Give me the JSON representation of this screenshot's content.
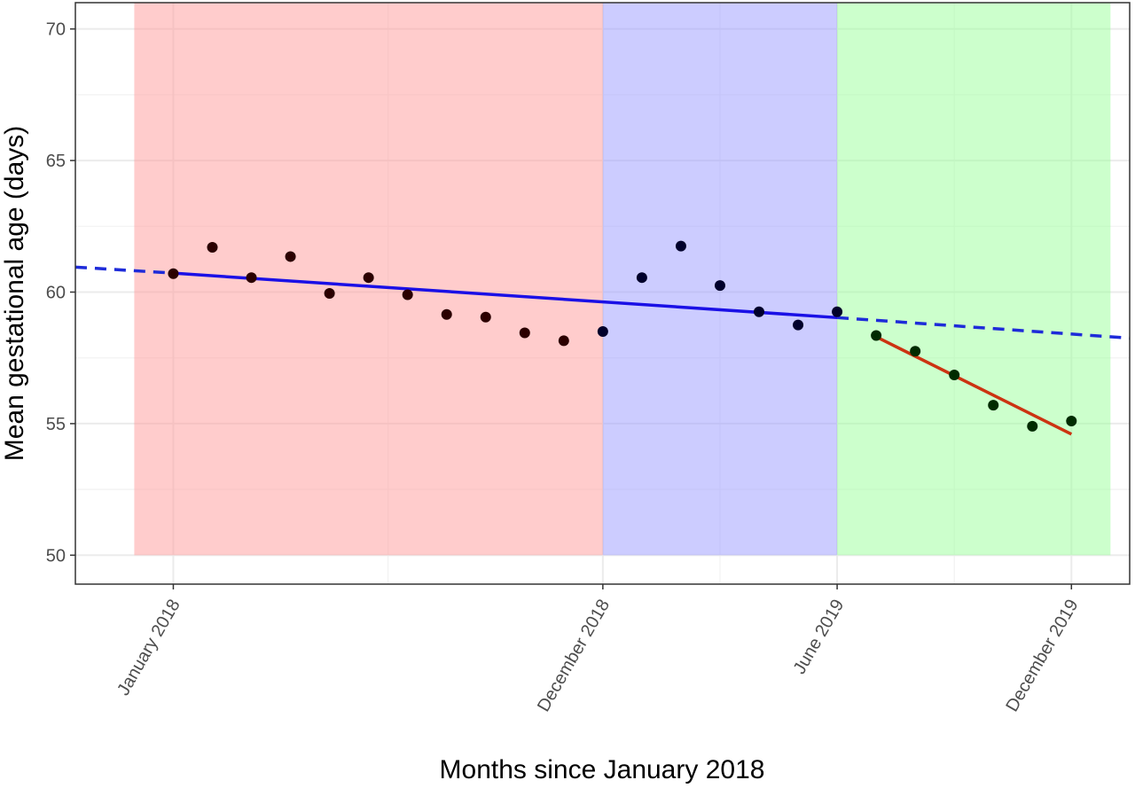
{
  "chart_data": {
    "type": "scatter",
    "title": "",
    "xlabel": "Months since January 2018",
    "ylabel": "Mean gestational age (days)",
    "x_unit": "month",
    "xlim": [
      "2017-10-16",
      "2020-01-16"
    ],
    "ylim": [
      48.9,
      71.0
    ],
    "x_ticks": [
      {
        "value": "2018-01",
        "label": "January 2018"
      },
      {
        "value": "2018-12",
        "label": "December 2018"
      },
      {
        "value": "2019-06",
        "label": "June 2019"
      },
      {
        "value": "2019-12",
        "label": "December 2019"
      }
    ],
    "y_ticks": [
      {
        "value": 50,
        "label": "50"
      },
      {
        "value": 55,
        "label": "55"
      },
      {
        "value": 60,
        "label": "60"
      },
      {
        "value": 65,
        "label": "65"
      },
      {
        "value": 70,
        "label": "70"
      }
    ],
    "grid": true,
    "legend": "none",
    "periods": [
      {
        "start": "2017-12",
        "end": "2018-12",
        "color": "#ff9999",
        "opacity": 0.5
      },
      {
        "start": "2018-12",
        "end": "2019-06",
        "color": "#9999ff",
        "opacity": 0.5
      },
      {
        "start": "2019-06",
        "end": "2020-01",
        "color": "#99ff99",
        "opacity": 0.5
      }
    ],
    "period_ymin": 50,
    "series": [
      {
        "color": "#2b0000",
        "points": [
          {
            "x": "2018-01",
            "y": 60.7
          },
          {
            "x": "2018-02",
            "y": 61.7
          },
          {
            "x": "2018-03",
            "y": 60.55
          },
          {
            "x": "2018-04",
            "y": 61.35
          },
          {
            "x": "2018-05",
            "y": 59.95
          },
          {
            "x": "2018-06",
            "y": 60.55
          },
          {
            "x": "2018-07",
            "y": 59.9
          },
          {
            "x": "2018-08",
            "y": 59.15
          },
          {
            "x": "2018-09",
            "y": 59.05
          },
          {
            "x": "2018-10",
            "y": 58.45
          },
          {
            "x": "2018-11",
            "y": 58.15
          }
        ]
      },
      {
        "color": "#00002b",
        "points": [
          {
            "x": "2018-12",
            "y": 58.5
          },
          {
            "x": "2019-01",
            "y": 60.55
          },
          {
            "x": "2019-02",
            "y": 61.75
          },
          {
            "x": "2019-03",
            "y": 60.25
          },
          {
            "x": "2019-04",
            "y": 59.25
          },
          {
            "x": "2019-05",
            "y": 58.75
          },
          {
            "x": "2019-06",
            "y": 59.25
          }
        ]
      },
      {
        "color": "#002b00",
        "points": [
          {
            "x": "2019-07",
            "y": 58.35
          },
          {
            "x": "2019-08",
            "y": 57.75
          },
          {
            "x": "2019-09",
            "y": 56.85
          },
          {
            "x": "2019-10",
            "y": 55.7
          },
          {
            "x": "2019-11",
            "y": 54.9
          },
          {
            "x": "2019-12",
            "y": 55.1
          }
        ]
      }
    ],
    "trend_lines": [
      {
        "x1": "2017-10-16",
        "y1": 60.95,
        "x2": "2018-01",
        "y2": 60.72,
        "color": "#1e2bd9",
        "style": "dashed"
      },
      {
        "x1": "2018-01",
        "y1": 60.72,
        "x2": "2019-06",
        "y2": 59.03,
        "color": "#1a10e6",
        "style": "solid"
      },
      {
        "x1": "2019-06",
        "y1": 59.03,
        "x2": "2020-01-16",
        "y2": 58.25,
        "color": "#1e2bd9",
        "style": "dashed"
      },
      {
        "x1": "2019-07",
        "y1": 58.3,
        "x2": "2019-12",
        "y2": 54.6,
        "color": "#cc3311",
        "style": "solid"
      }
    ]
  }
}
